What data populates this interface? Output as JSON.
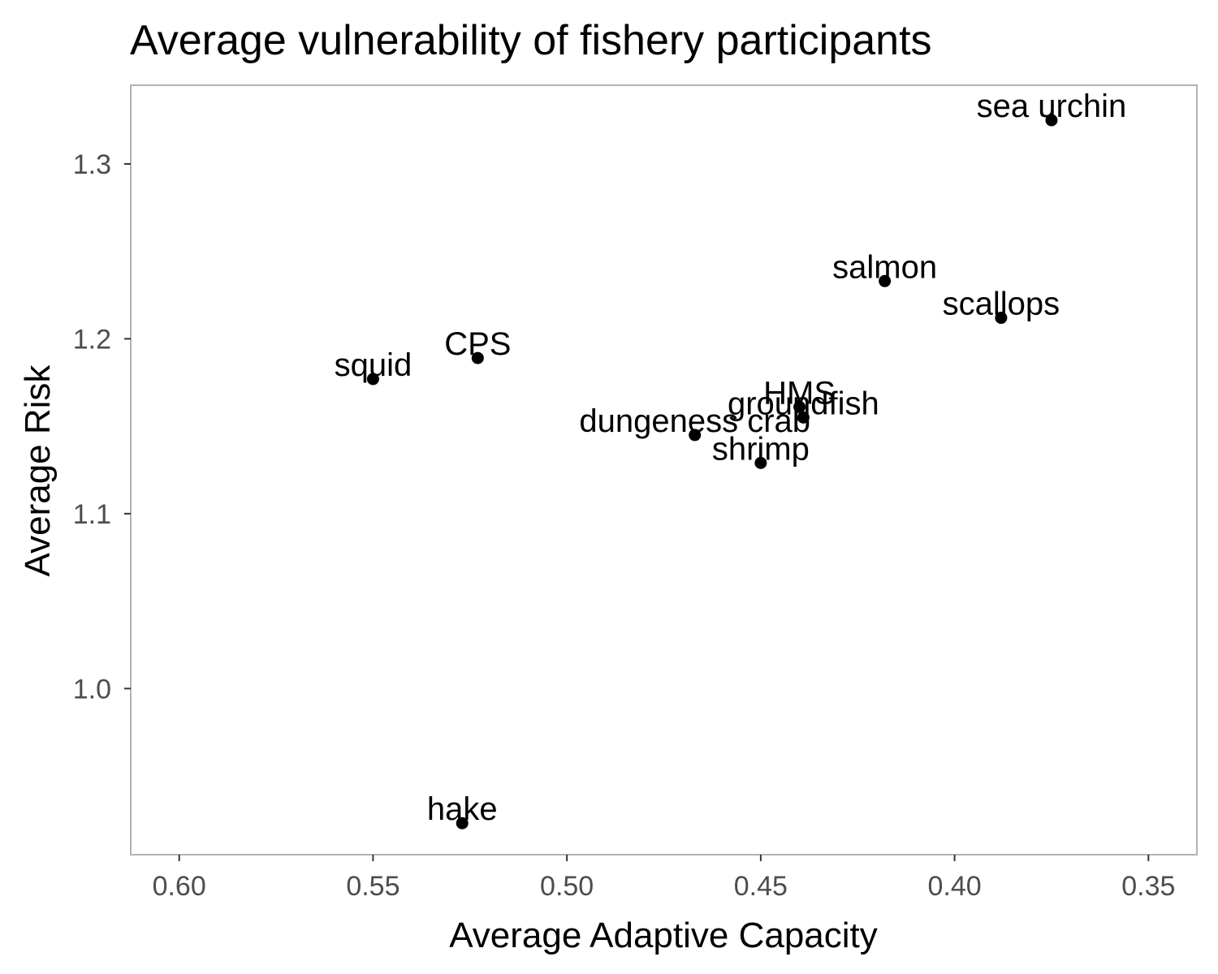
{
  "chart_data": {
    "type": "scatter",
    "title": "Average vulnerability of fishery participants",
    "xlabel": "Average Adaptive Capacity",
    "ylabel": "Average Risk",
    "x_reversed": true,
    "xlim": [
      0.6125,
      0.3375
    ],
    "ylim": [
      0.905,
      1.345
    ],
    "xticks": [
      0.6,
      0.55,
      0.5,
      0.45,
      0.4,
      0.35
    ],
    "xtick_labels": [
      "0.60",
      "0.55",
      "0.50",
      "0.45",
      "0.40",
      "0.35"
    ],
    "yticks": [
      1.0,
      1.1,
      1.2,
      1.3
    ],
    "ytick_labels": [
      "1.0",
      "1.1",
      "1.2",
      "1.3"
    ],
    "grid": false,
    "point_color": "#000000",
    "points": [
      {
        "label": "sea urchin",
        "x": 0.375,
        "y": 1.325
      },
      {
        "label": "salmon",
        "x": 0.418,
        "y": 1.233
      },
      {
        "label": "scallops",
        "x": 0.388,
        "y": 1.212
      },
      {
        "label": "CPS",
        "x": 0.523,
        "y": 1.189
      },
      {
        "label": "squid",
        "x": 0.55,
        "y": 1.177
      },
      {
        "label": "HMS",
        "x": 0.44,
        "y": 1.161
      },
      {
        "label": "groundfish",
        "x": 0.439,
        "y": 1.155
      },
      {
        "label": "dungeness crab",
        "x": 0.467,
        "y": 1.145
      },
      {
        "label": "shrimp",
        "x": 0.45,
        "y": 1.129
      },
      {
        "label": "hake",
        "x": 0.527,
        "y": 0.923
      }
    ]
  }
}
